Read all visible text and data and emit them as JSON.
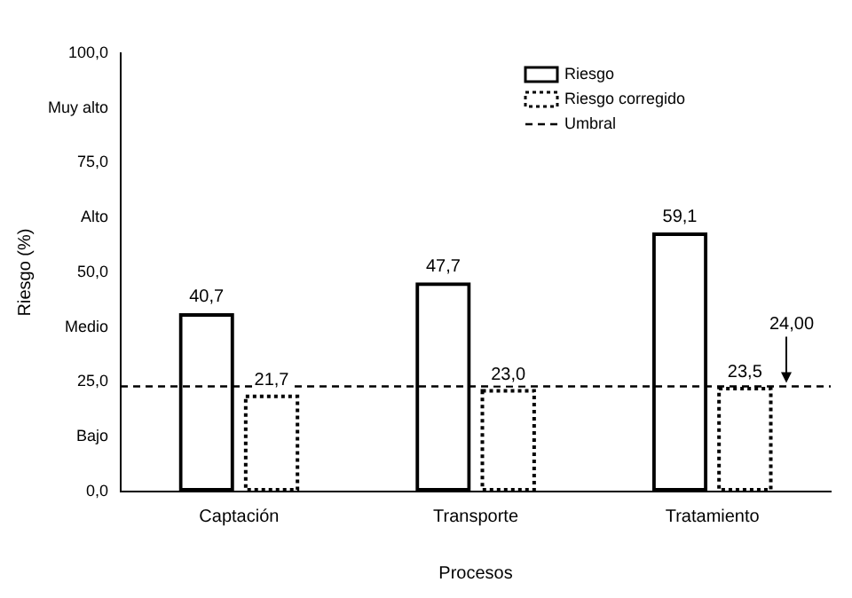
{
  "chart_data": {
    "type": "bar",
    "xlabel": "Procesos",
    "ylabel": "Riesgo (%)",
    "categories": [
      "Captación",
      "Transporte",
      "Tratamiento"
    ],
    "series": [
      {
        "name": "Riesgo",
        "color": "#000000",
        "line_style": "solid",
        "values": [
          40.7,
          47.7,
          59.1
        ],
        "value_labels": [
          "40,7",
          "47,7",
          "59,1"
        ]
      },
      {
        "name": "Riesgo corregido",
        "color": "#000000",
        "line_style": "dotted",
        "values": [
          21.7,
          23.0,
          23.5
        ],
        "value_labels": [
          "21,7",
          "23,0",
          "23,5"
        ]
      }
    ],
    "ylim": [
      0,
      100
    ],
    "yticks": [
      {
        "value": 0,
        "label": "0,0"
      },
      {
        "value": 12.5,
        "label": "Bajo"
      },
      {
        "value": 25,
        "label": "25,0"
      },
      {
        "value": 37.5,
        "label": "Medio"
      },
      {
        "value": 50,
        "label": "50,0"
      },
      {
        "value": 62.5,
        "label": "Alto"
      },
      {
        "value": 75,
        "label": "75,0"
      },
      {
        "value": 87.5,
        "label": "Muy alto"
      },
      {
        "value": 100,
        "label": "100,0"
      }
    ],
    "ref_lines": [
      {
        "axis": "y",
        "value": 24,
        "label": "Umbral",
        "color": "#000000",
        "line_style": "dashed"
      }
    ],
    "annotations": [
      {
        "text": "24,00",
        "y": 24
      }
    ],
    "legend": "top right",
    "grid": false
  }
}
